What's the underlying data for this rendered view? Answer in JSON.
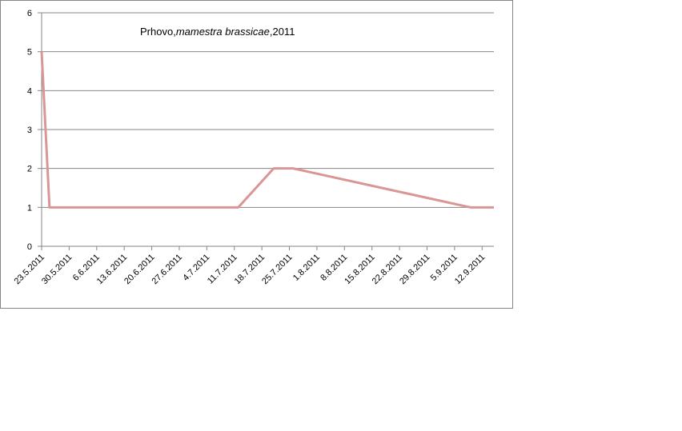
{
  "chart_data": {
    "type": "line",
    "title_parts": [
      {
        "text": "Prhovo,",
        "italic": false
      },
      {
        "text": "mamestra brassicae",
        "italic": true
      },
      {
        "text": ",2011",
        "italic": false
      }
    ],
    "x": [
      "23.5.2011",
      "25.5.2011",
      "12.7.2011",
      "21.7.2011",
      "26.7.2011",
      "9.9.2011",
      "15.9.2011"
    ],
    "values": [
      5,
      1,
      1,
      2,
      2,
      1,
      1
    ],
    "color": "#d99694",
    "xlim": [
      "23.5.2011",
      "15.9.2011"
    ],
    "xticks": [
      "23.5.2011",
      "30.5.2011",
      "6.6.2011",
      "13.6.2011",
      "20.6.2011",
      "27.6.2011",
      "4.7.2011",
      "11.7.2011",
      "18.7.2011",
      "25.7.2011",
      "1.8.2011",
      "8.8.2011",
      "15.8.2011",
      "22.8.2011",
      "29.8.2011",
      "5.9.2011",
      "12.9.2011"
    ],
    "ylim": [
      0,
      6
    ],
    "yticks": [
      0,
      1,
      2,
      3,
      4,
      5,
      6
    ],
    "grid": true
  }
}
